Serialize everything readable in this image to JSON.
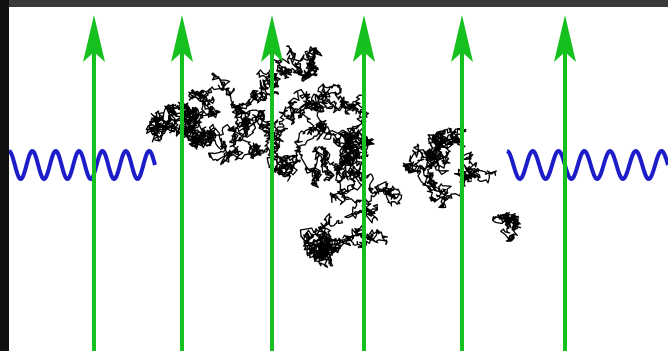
{
  "diagram": {
    "background_color": "#ffffff",
    "frame_color": "#1b1b1b",
    "arrows": {
      "count": 6,
      "color": "#16c01f",
      "direction": "up"
    },
    "waves": {
      "count": 2,
      "color": "#1c1cc8",
      "shape": "sinusoid",
      "cycles_each": 6
    },
    "random_walk": {
      "color": "#000000",
      "description_shape": "dense tangled cluster"
    }
  }
}
